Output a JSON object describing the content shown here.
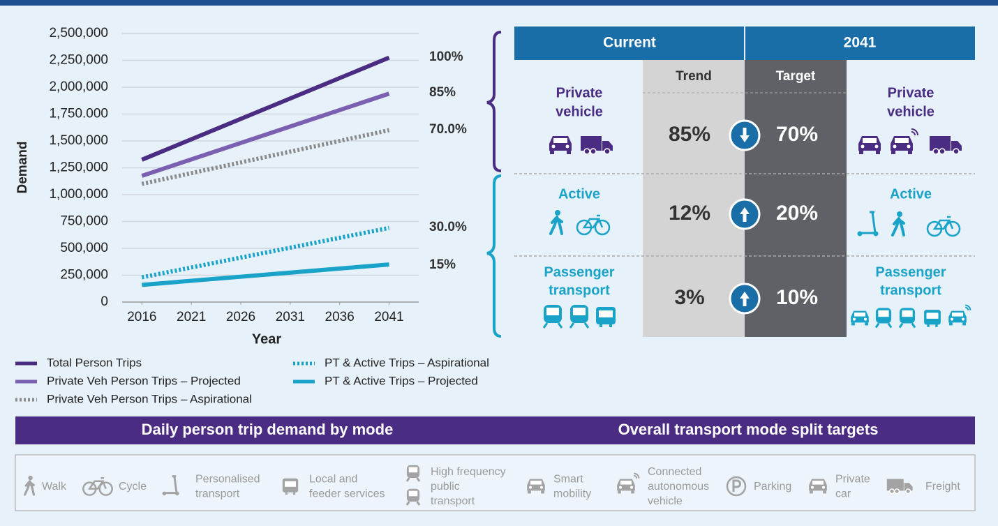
{
  "chart_data": {
    "type": "line",
    "y_label": "Demand",
    "x_label": "Year",
    "x": [
      2016,
      2041
    ],
    "xlim": [
      2014,
      2044
    ],
    "xticks": [
      2016,
      2021,
      2026,
      2031,
      2036,
      2041
    ],
    "ylim": [
      0,
      2500000
    ],
    "yticks": [
      0,
      {
        "value": 250000,
        "label": "250,000"
      },
      {
        "value": 500000,
        "label": "500,000"
      },
      {
        "value": 750000,
        "label": "750,000"
      },
      {
        "value": 1000000,
        "label": "1,000,000"
      },
      {
        "value": 1250000,
        "label": "1,250,000"
      },
      {
        "value": 1500000,
        "label": "1,500,000"
      },
      {
        "value": 1750000,
        "label": "1,750.000"
      },
      {
        "value": 2000000,
        "label": "2,000,000"
      },
      {
        "value": 2250000,
        "label": "2,250,000"
      },
      {
        "value": 2500000,
        "label": "2,500,000"
      }
    ],
    "grid": true,
    "legend": "bottom-left",
    "series": [
      {
        "name": "Total Person Trips",
        "color": "#4b2c83",
        "style": "solid",
        "values": [
          1325000,
          2275000
        ]
      },
      {
        "name": "Private Veh Person Trips – Projected",
        "color": "#7b5fb0",
        "style": "solid",
        "values": [
          1175000,
          1940000
        ]
      },
      {
        "name": "Private Veh Person Trips – Aspirational",
        "color": "#8a8a8a",
        "style": "dotted",
        "values": [
          1100000,
          1600000
        ]
      },
      {
        "name": "PT & Active Trips – Aspirational",
        "color": "#1aa3c8",
        "style": "dotted",
        "values": [
          230000,
          690000
        ]
      },
      {
        "name": "PT & Active Trips – Projected",
        "color": "#1aa3c8",
        "style": "solid",
        "values": [
          160000,
          350000
        ]
      }
    ],
    "annotations": [
      "100%",
      "85%",
      "70.0%",
      "30.0%",
      "15%"
    ]
  },
  "mode_split": {
    "headers": [
      "Current",
      "2041"
    ],
    "columns": [
      "Trend",
      "Target"
    ],
    "rows": [
      {
        "label": [
          "Private",
          "vehicle"
        ],
        "trend": "85%",
        "target": "70%"
      },
      {
        "label": [
          "Active"
        ],
        "trend": "12%",
        "target": "20%"
      },
      {
        "label": [
          "Passenger",
          "transport"
        ],
        "trend": "3%",
        "target": "10%"
      }
    ]
  },
  "banner": [
    "Daily person trip demand by mode",
    "Overall transport mode split targets"
  ],
  "key": [
    [
      "Walk"
    ],
    [
      "Cycle"
    ],
    [
      "Personalised",
      "transport"
    ],
    [
      "Local and",
      "feeder services"
    ],
    [
      "High frequency",
      "public",
      "transport"
    ],
    [
      "Smart",
      "mobility"
    ],
    [
      "Connected",
      "autonomous",
      "vehicle"
    ],
    [
      "Parking"
    ],
    [
      "Private",
      "car"
    ],
    [
      "Freight"
    ]
  ]
}
